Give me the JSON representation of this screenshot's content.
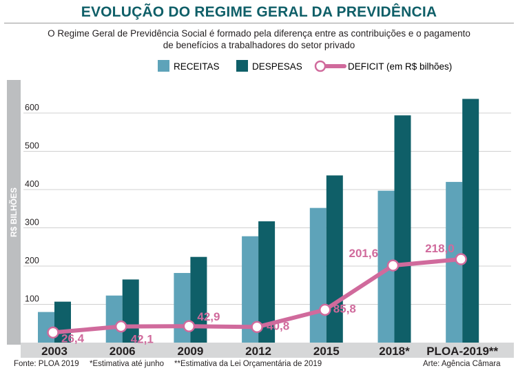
{
  "header": {
    "title": "EVOLUÇÃO DO REGIME GERAL DA PREVIDÊNCIA",
    "subtitle_line1": "O Regime Geral de Previdência Social é formado pela diferença entre as contribuições e o pagamento",
    "subtitle_line2": "de benefícios a trabalhadores do setor privado"
  },
  "legend": {
    "receitas": "RECEITAS",
    "despesas": "DESPESAS",
    "deficit": "DEFICIT",
    "deficit_unit": " (em R$ bilhões)"
  },
  "footer": {
    "source": "Fonte: PLOA 2019",
    "note1": "*Estimativa até junho",
    "note2": "**Estimativa da Lei Orçamentária de 2019",
    "credit": "Arte: Agência Câmara"
  },
  "colors": {
    "receitas": "#5ea3b9",
    "despesas": "#0f5f68",
    "deficit": "#d06a9c",
    "title_color": "#0f5f68",
    "ylabel_band": "#bcbec0",
    "xaxis_band": "#d6d7d8"
  },
  "chart_data": {
    "type": "bar",
    "ylabel": "R$ BILHÕES",
    "ylim": [
      0,
      660
    ],
    "yticks": [
      100,
      200,
      300,
      400,
      500,
      600
    ],
    "grid": true,
    "legend_position": "top",
    "categories": [
      "2003",
      "2006",
      "2009",
      "2012",
      "2015",
      "2018*",
      "PLOA-2019**"
    ],
    "series": [
      {
        "name": "RECEITAS",
        "kind": "bar",
        "values": [
          80,
          123,
          182,
          278,
          352,
          397,
          420
        ]
      },
      {
        "name": "DESPESAS",
        "kind": "bar",
        "values": [
          107,
          165,
          224,
          317,
          437,
          594,
          637
        ]
      },
      {
        "name": "DEFICIT",
        "kind": "line",
        "values": [
          26.4,
          42.1,
          42.9,
          40.8,
          85.8,
          201.6,
          218.0
        ],
        "labels": [
          "26,4",
          "42,1",
          "42,9",
          "40,8",
          "85,8",
          "201,6",
          "218,0"
        ]
      }
    ]
  }
}
